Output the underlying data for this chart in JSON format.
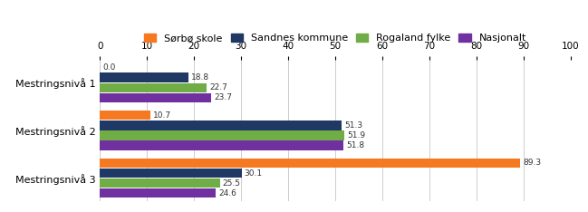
{
  "categories": [
    "Mestringsnivå 1",
    "Mestringsnivå 2",
    "Mestringsnivå 3"
  ],
  "series": [
    {
      "label": "Sørbø skole",
      "color": "#F47920",
      "values": [
        0.0,
        10.7,
        89.3
      ]
    },
    {
      "label": "Sandnes kommune",
      "color": "#1F3864",
      "values": [
        18.8,
        51.3,
        30.1
      ]
    },
    {
      "label": "Rogaland fylke",
      "color": "#70AD47",
      "values": [
        22.7,
        51.9,
        25.5
      ]
    },
    {
      "label": "Nasjonalt",
      "color": "#7030A0",
      "values": [
        23.7,
        51.8,
        24.6
      ]
    }
  ],
  "xlim": [
    0,
    100
  ],
  "xticks": [
    0,
    10,
    20,
    30,
    40,
    50,
    60,
    70,
    80,
    90,
    100
  ],
  "bar_height": 0.15,
  "background_color": "#ffffff",
  "grid_color": "#bbbbbb",
  "tick_label_fontsize": 7.5,
  "legend_fontsize": 8,
  "ylabel_fontsize": 8,
  "value_fontsize": 6.5
}
